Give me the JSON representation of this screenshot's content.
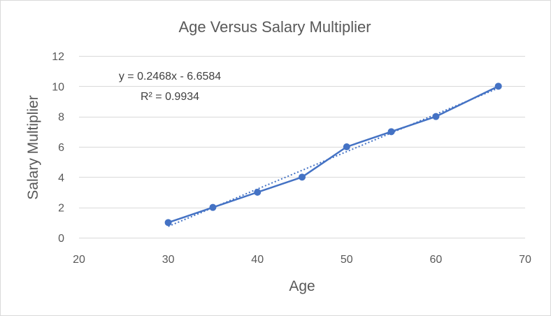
{
  "chart_data": {
    "type": "scatter",
    "title": "Age Versus Salary Multiplier",
    "xlabel": "Age",
    "ylabel": "Salary Multiplier",
    "xlim": [
      20,
      70
    ],
    "ylim": [
      0,
      12
    ],
    "xticks": [
      20,
      30,
      40,
      50,
      60,
      70
    ],
    "yticks": [
      0,
      2,
      4,
      6,
      8,
      10,
      12
    ],
    "grid": "horizontal",
    "legend": "none",
    "series": [
      {
        "x": [
          30,
          35,
          40,
          45,
          50,
          55,
          60,
          67
        ],
        "y": [
          1,
          2,
          3,
          4,
          6,
          7,
          8,
          10
        ],
        "color": "#4472c4",
        "marker": "circle",
        "line": "solid"
      }
    ],
    "trendline": {
      "type": "linear",
      "slope": 0.2468,
      "intercept": -6.6584,
      "x_range": [
        30,
        67
      ],
      "style": "dotted",
      "color": "#4472c4",
      "equation_label": "y = 0.2468x - 6.6584",
      "r2_label": "R² = 0.9934"
    }
  }
}
